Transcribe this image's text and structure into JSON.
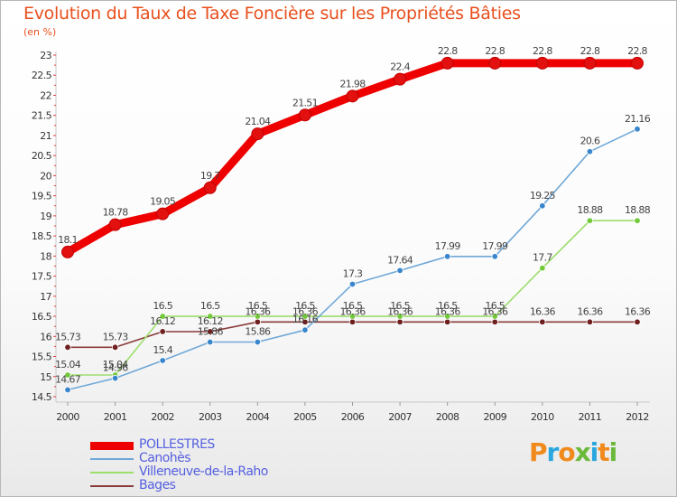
{
  "header": {
    "title": "Evolution du Taux de Taxe Foncière sur les Propriétés Bâties",
    "unit": "(en %)"
  },
  "logo": {
    "letters": [
      "P",
      "r",
      "o",
      "x",
      "i",
      "t",
      "i"
    ],
    "colors": [
      "#f08a1d",
      "#2aa7df",
      "#f08a1d",
      "#6ab93a",
      "#2aa7df",
      "#f08a1d",
      "#6ab93a"
    ]
  },
  "chart_data": {
    "type": "line",
    "title": "Evolution du Taux de Taxe Foncière sur les Propriétés Bâties",
    "ylabel": "(en %)",
    "xlabel": "",
    "x": [
      2000,
      2001,
      2002,
      2003,
      2004,
      2005,
      2006,
      2007,
      2008,
      2009,
      2010,
      2011,
      2012
    ],
    "ylim": [
      14.5,
      23
    ],
    "yticks": [
      14.5,
      15,
      15.5,
      16,
      16.5,
      17,
      17.5,
      18,
      18.5,
      19,
      19.5,
      20,
      20.5,
      21,
      21.5,
      22,
      22.5,
      23
    ],
    "grid": false,
    "legend_position": "bottom-left",
    "series": [
      {
        "name": "POLLESTRES",
        "color": "#ee0000",
        "marker": "#e31010",
        "width": "thick",
        "values": [
          18.1,
          18.78,
          19.05,
          19.7,
          21.04,
          21.51,
          21.98,
          22.4,
          22.8,
          22.8,
          22.8,
          22.8,
          22.8
        ],
        "labels": [
          "18.1",
          "18.78",
          "19.05",
          "19.7",
          "21.04",
          "21.51",
          "21.98",
          "22.4",
          "22.8",
          "22.8",
          "22.8",
          "22.8",
          "22.8"
        ]
      },
      {
        "name": "Canohès",
        "color": "#6fa8d8",
        "marker": "#3a86cc",
        "width": "thin",
        "values": [
          14.67,
          14.96,
          15.4,
          15.86,
          15.86,
          16.16,
          17.3,
          17.64,
          17.99,
          17.99,
          19.25,
          20.6,
          21.16
        ],
        "labels": [
          "14.67",
          "14.96",
          "15.4",
          "15.86",
          "15.86",
          "16.16",
          "17.3",
          "17.64",
          "17.99",
          "17.99",
          "19.25",
          "20.6",
          "21.16"
        ]
      },
      {
        "name": "Villeneuve-de-la-Raho",
        "color": "#9cde6c",
        "marker": "#72c93a",
        "width": "thin",
        "values": [
          15.04,
          15.04,
          16.5,
          16.5,
          16.5,
          16.5,
          16.5,
          16.5,
          16.5,
          16.5,
          17.7,
          18.88,
          18.88
        ],
        "labels": [
          "15.04",
          "15.04",
          "16.5",
          "16.5",
          "16.5",
          "16.5",
          "16.5",
          "16.5",
          "16.5",
          "16.5",
          "17.7",
          "18.88",
          "18.88"
        ]
      },
      {
        "name": "Bages",
        "color": "#8a3a3a",
        "marker": "#6e1f1f",
        "width": "thin",
        "values": [
          15.73,
          15.73,
          16.12,
          16.12,
          16.36,
          16.36,
          16.36,
          16.36,
          16.36,
          16.36,
          16.36,
          16.36,
          16.36
        ],
        "labels": [
          "15.73",
          "15.73",
          "16.12",
          "16.12",
          "16.36",
          "16.36",
          "16.36",
          "16.36",
          "16.36",
          "16.36",
          "16.36",
          "16.36",
          "16.36"
        ]
      }
    ]
  }
}
